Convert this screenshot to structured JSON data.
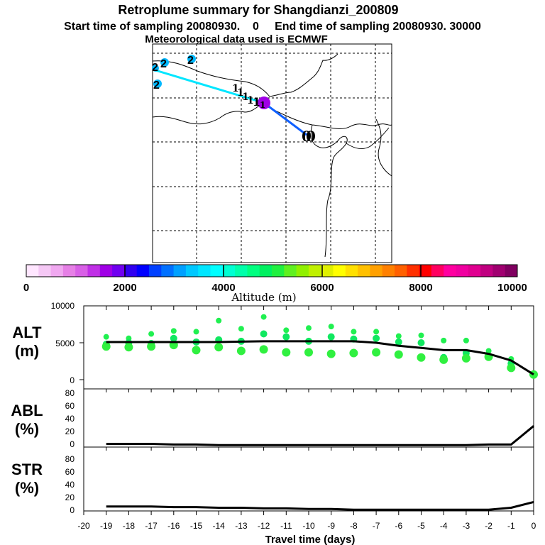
{
  "header": {
    "title": "Retroplume summary for Shangdianzi_200809",
    "subtitle": "Start time of sampling 20080930.    0     End time of sampling 20080930. 30000",
    "metline": "Meteorological data used is ECMWF"
  },
  "map": {
    "trajectory_points": [
      {
        "label": "0",
        "lon_frac": 0.62,
        "lat_frac": 0.46
      },
      {
        "label": "1",
        "lon_frac": 0.47,
        "lat_frac": 0.31
      },
      {
        "label": "1",
        "lon_frac": 0.4,
        "lat_frac": 0.28
      },
      {
        "label": "2",
        "lon_frac": 0.01,
        "lat_frac": 0.13
      }
    ],
    "cluster_labels": [
      "1",
      "1",
      "1",
      "1",
      "1",
      "1",
      "2",
      "2",
      "2",
      "2",
      "0",
      "0"
    ]
  },
  "colorbar": {
    "label": "Altitude (m)",
    "ticks": [
      "0",
      "2000",
      "4000",
      "6000",
      "8000",
      "10000"
    ],
    "colors": [
      "#ffe6ff",
      "#f5c8f5",
      "#f0a8f0",
      "#e680e6",
      "#d860e6",
      "#c030e6",
      "#a000e6",
      "#7000f0",
      "#3000f0",
      "#0000ff",
      "#0040ff",
      "#0070ff",
      "#00a0ff",
      "#00c8ff",
      "#00e6ff",
      "#00ffff",
      "#00ffd2",
      "#00ffaa",
      "#00ff80",
      "#00f060",
      "#20f040",
      "#60f020",
      "#90f000",
      "#c0f000",
      "#e0f000",
      "#ffff00",
      "#ffe000",
      "#ffc000",
      "#ffa000",
      "#ff8000",
      "#ff6000",
      "#ff3000",
      "#ff0000",
      "#ff0060",
      "#ff00a0",
      "#f000a0",
      "#e00090",
      "#c00080",
      "#a00070",
      "#800060"
    ]
  },
  "panels": {
    "alt": {
      "label_1": "ALT",
      "label_2": "(m)",
      "yticks": [
        "10000",
        "5000",
        "0"
      ]
    },
    "abl": {
      "label_1": "ABL",
      "label_2": "(%)",
      "yticks": [
        "80",
        "60",
        "40",
        "20",
        "0"
      ]
    },
    "str": {
      "label_1": "STR",
      "label_2": "(%)",
      "yticks": [
        "80",
        "60",
        "40",
        "20",
        "0"
      ]
    }
  },
  "xaxis": {
    "label": "Travel time (days)",
    "ticks": [
      "-20",
      "-19",
      "-18",
      "-17",
      "-16",
      "-15",
      "-14",
      "-13",
      "-12",
      "-11",
      "-10",
      "-9",
      "-8",
      "-7",
      "-6",
      "-5",
      "-4",
      "-3",
      "-2",
      "-1",
      "0"
    ]
  },
  "chart_data": {
    "type": "line",
    "title": "Retroplume summary for Shangdianzi_200809",
    "xlabel": "Travel time (days)",
    "x": [
      -19,
      -18,
      -17,
      -16,
      -15,
      -14,
      -13,
      -12,
      -11,
      -10,
      -9,
      -8,
      -7,
      -6,
      -5,
      -4,
      -3,
      -2,
      -1,
      0
    ],
    "series": [
      {
        "name": "ALT (m)",
        "ylim": [
          0,
          10000
        ],
        "values": [
          5100,
          5100,
          5100,
          5100,
          5100,
          5100,
          5150,
          5200,
          5200,
          5200,
          5200,
          5200,
          5000,
          4600,
          4300,
          4000,
          4000,
          3500,
          2600,
          700
        ]
      },
      {
        "name": "ABL (%)",
        "ylim": [
          0,
          90
        ],
        "values": [
          5,
          5,
          5,
          4,
          4,
          3,
          3,
          3,
          3,
          3,
          3,
          3,
          3,
          3,
          3,
          3,
          3,
          4,
          4,
          33
        ]
      },
      {
        "name": "STR (%)",
        "ylim": [
          0,
          90
        ],
        "values": [
          7,
          7,
          7,
          6,
          6,
          5,
          5,
          4,
          4,
          3,
          3,
          2,
          2,
          2,
          2,
          2,
          2,
          2,
          5,
          14
        ]
      }
    ],
    "alt_clusters": {
      "x": [
        -19,
        -18,
        -17,
        -16,
        -15,
        -14,
        -13,
        -12,
        -11,
        -10,
        -9,
        -8,
        -7,
        -6,
        -5,
        -4,
        -3,
        -2,
        -1,
        0
      ],
      "upper": [
        5800,
        5600,
        6200,
        6600,
        6500,
        8000,
        6900,
        8500,
        6700,
        7000,
        7200,
        6500,
        6500,
        5900,
        6000,
        5300,
        5300,
        3900,
        2800,
        700
      ],
      "middle": [
        4800,
        5000,
        4900,
        5600,
        5100,
        5400,
        5200,
        6200,
        5800,
        5200,
        5800,
        5500,
        5600,
        5100,
        5000,
        3000,
        3600,
        3100,
        2200,
        700
      ],
      "lower": [
        4500,
        4400,
        4500,
        4700,
        4000,
        4400,
        3900,
        4100,
        3700,
        3700,
        3500,
        3600,
        3700,
        3400,
        3000,
        2700,
        2900,
        3100,
        1600,
        700
      ]
    },
    "xlim": [
      -20,
      0
    ]
  }
}
